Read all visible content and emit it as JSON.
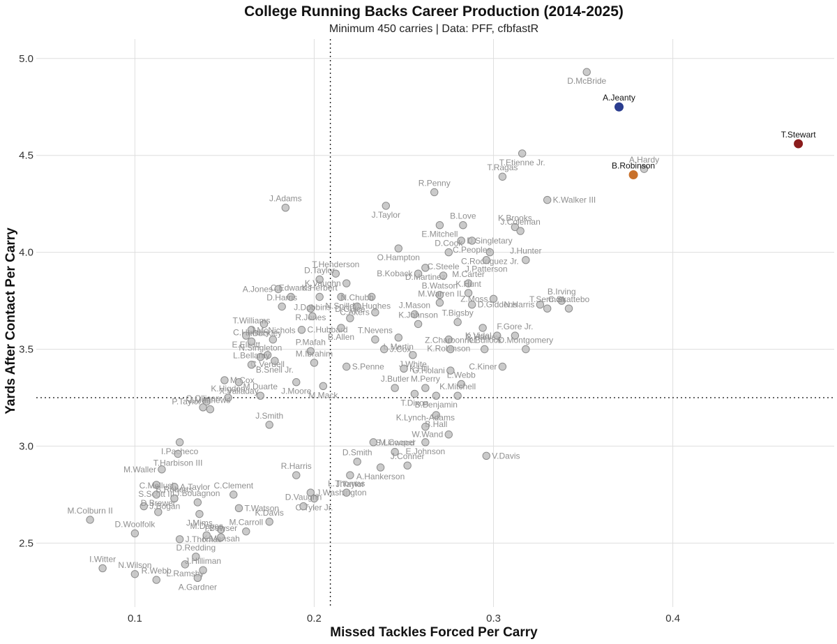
{
  "chart_data": {
    "type": "scatter",
    "title": "College Running Backs Career Production (2014-2025)",
    "subtitle": "Minimum 450 carries | Data: PFF, cfbfastR",
    "xlabel": "Missed Tackles Forced Per Carry",
    "ylabel": "Yards After Contact Per Carry",
    "xlim": [
      0.045,
      0.49
    ],
    "ylim": [
      2.17,
      5.1
    ],
    "x_ticks": [
      "0.1",
      "0.2",
      "0.3",
      "0.4"
    ],
    "x_tick_values": [
      0.1,
      0.2,
      0.3,
      0.4
    ],
    "y_ticks": [
      "2.5",
      "3.0",
      "3.5",
      "4.0",
      "4.5",
      "5.0"
    ],
    "y_tick_values": [
      2.5,
      3.0,
      3.5,
      4.0,
      4.5,
      5.0
    ],
    "grid": true,
    "reference_lines": {
      "x": 0.209,
      "y": 3.25
    },
    "highlight_colors": {
      "A.Jeanty": "#2b3d8f",
      "T.Stewart": "#8b1c1c",
      "B.Robinson": "#c8702a"
    },
    "points": [
      {
        "name": "D.McBride",
        "x": 0.352,
        "y": 4.93
      },
      {
        "name": "A.Jeanty",
        "x": 0.37,
        "y": 4.75,
        "highlight": true
      },
      {
        "name": "T.Stewart",
        "x": 0.47,
        "y": 4.56,
        "highlight": true
      },
      {
        "name": "T.Etienne Jr.",
        "x": 0.316,
        "y": 4.51
      },
      {
        "name": "A.Hardy",
        "x": 0.384,
        "y": 4.43
      },
      {
        "name": "T.Ragas",
        "x": 0.305,
        "y": 4.39
      },
      {
        "name": "B.Robinson",
        "x": 0.378,
        "y": 4.4,
        "highlight": true
      },
      {
        "name": "J.Adams",
        "x": 0.184,
        "y": 4.23
      },
      {
        "name": "J.Taylor",
        "x": 0.24,
        "y": 4.24
      },
      {
        "name": "R.Penny",
        "x": 0.267,
        "y": 4.31
      },
      {
        "name": "K.Walker III",
        "x": 0.33,
        "y": 4.27
      },
      {
        "name": "E.Mitchell",
        "x": 0.27,
        "y": 4.14
      },
      {
        "name": "B.Love",
        "x": 0.283,
        "y": 4.14
      },
      {
        "name": "K.Brooks",
        "x": 0.312,
        "y": 4.13
      },
      {
        "name": "D.Singletary",
        "x": 0.282,
        "y": 4.06
      },
      {
        "name": "C.Peoples",
        "x": 0.288,
        "y": 4.06
      },
      {
        "name": "J.Coleman",
        "x": 0.315,
        "y": 4.11
      },
      {
        "name": "O.Hampton",
        "x": 0.247,
        "y": 4.02
      },
      {
        "name": "D.Cook",
        "x": 0.275,
        "y": 4.0
      },
      {
        "name": "C.Rodriguez Jr.",
        "x": 0.298,
        "y": 4.0
      },
      {
        "name": "T.Henderson",
        "x": 0.212,
        "y": 3.89
      },
      {
        "name": "D.Martinez",
        "x": 0.262,
        "y": 3.92
      },
      {
        "name": "J.Patterson",
        "x": 0.296,
        "y": 3.96
      },
      {
        "name": "J.Hunter",
        "x": 0.318,
        "y": 3.96
      },
      {
        "name": "D.Taylor",
        "x": 0.203,
        "y": 3.86
      },
      {
        "name": "K.Vaughn",
        "x": 0.218,
        "y": 3.84
      },
      {
        "name": "B.Koback",
        "x": 0.258,
        "y": 3.89
      },
      {
        "name": "C.Steele",
        "x": 0.272,
        "y": 3.88
      },
      {
        "name": "M.Carter",
        "x": 0.286,
        "y": 3.84
      },
      {
        "name": "A.Jones",
        "x": 0.18,
        "y": 3.81
      },
      {
        "name": "C.Edwards",
        "x": 0.187,
        "y": 3.77
      },
      {
        "name": "K.Herbert",
        "x": 0.203,
        "y": 3.77
      },
      {
        "name": "N.Spiller",
        "x": 0.215,
        "y": 3.77
      },
      {
        "name": "M.Hughes",
        "x": 0.232,
        "y": 3.77
      },
      {
        "name": "B.Watson",
        "x": 0.27,
        "y": 3.78
      },
      {
        "name": "K.Hunt",
        "x": 0.286,
        "y": 3.79
      },
      {
        "name": "Z.Moss",
        "x": 0.3,
        "y": 3.76
      },
      {
        "name": "B.Irving",
        "x": 0.338,
        "y": 3.75
      },
      {
        "name": "D.Harris",
        "x": 0.182,
        "y": 3.72
      },
      {
        "name": "R.Jones",
        "x": 0.198,
        "y": 3.71
      },
      {
        "name": "N.Chubb",
        "x": 0.224,
        "y": 3.72
      },
      {
        "name": "M.Warren II",
        "x": 0.27,
        "y": 3.74
      },
      {
        "name": "D.Giddens",
        "x": 0.288,
        "y": 3.73
      },
      {
        "name": "C.Skattebo",
        "x": 0.342,
        "y": 3.71
      },
      {
        "name": "J.Dobbins",
        "x": 0.199,
        "y": 3.67
      },
      {
        "name": "D.Guice",
        "x": 0.22,
        "y": 3.66
      },
      {
        "name": "C.Akers",
        "x": 0.234,
        "y": 3.69
      },
      {
        "name": "J.Mason",
        "x": 0.256,
        "y": 3.68
      },
      {
        "name": "N.Harris",
        "x": 0.326,
        "y": 3.73
      },
      {
        "name": "J.Buckley",
        "x": 0.172,
        "y": 3.63
      },
      {
        "name": "T.Sermon",
        "x": 0.33,
        "y": 3.71
      },
      {
        "name": "E.Elliott",
        "x": 0.162,
        "y": 3.57
      },
      {
        "name": "T.Williams",
        "x": 0.165,
        "y": 3.6
      },
      {
        "name": "C.Hubbard",
        "x": 0.193,
        "y": 3.6
      },
      {
        "name": "B.Allen",
        "x": 0.215,
        "y": 3.61
      },
      {
        "name": "K.Johnson",
        "x": 0.258,
        "y": 3.63
      },
      {
        "name": "T.Bigsby",
        "x": 0.28,
        "y": 3.64
      },
      {
        "name": "R.Harvey",
        "x": 0.294,
        "y": 3.61
      },
      {
        "name": "C.Huntley",
        "x": 0.165,
        "y": 3.54
      },
      {
        "name": "J.McNichols",
        "x": 0.177,
        "y": 3.55
      },
      {
        "name": "T.Nevens",
        "x": 0.234,
        "y": 3.55
      },
      {
        "name": "L.Martin",
        "x": 0.247,
        "y": 3.56
      },
      {
        "name": "K.Robinson",
        "x": 0.275,
        "y": 3.55
      },
      {
        "name": "K.Vidal",
        "x": 0.302,
        "y": 3.57
      },
      {
        "name": "F.Gore Jr.",
        "x": 0.312,
        "y": 3.57
      },
      {
        "name": "N.Singleton",
        "x": 0.17,
        "y": 3.46
      },
      {
        "name": "C.Verdell",
        "x": 0.174,
        "y": 3.47
      },
      {
        "name": "P.Mafah",
        "x": 0.198,
        "y": 3.49
      },
      {
        "name": "J.Cox",
        "x": 0.239,
        "y": 3.5
      },
      {
        "name": "J.White",
        "x": 0.255,
        "y": 3.47
      },
      {
        "name": "Z.Charbonnet",
        "x": 0.276,
        "y": 3.5
      },
      {
        "name": "K.Bullock",
        "x": 0.295,
        "y": 3.5
      },
      {
        "name": "D.Montgomery",
        "x": 0.318,
        "y": 3.5
      },
      {
        "name": "B.Snell Jr.",
        "x": 0.178,
        "y": 3.44
      },
      {
        "name": "M.Ibrahim",
        "x": 0.2,
        "y": 3.43
      },
      {
        "name": "L.Bellamy",
        "x": 0.165,
        "y": 3.42
      },
      {
        "name": "S.Penne",
        "x": 0.218,
        "y": 3.41
      },
      {
        "name": "K.Hill",
        "x": 0.25,
        "y": 3.4
      },
      {
        "name": "G.Holani",
        "x": 0.276,
        "y": 3.39
      },
      {
        "name": "C.Kiner",
        "x": 0.305,
        "y": 3.41
      },
      {
        "name": "M.Cox",
        "x": 0.15,
        "y": 3.34
      },
      {
        "name": "X.Valladay",
        "x": 0.158,
        "y": 3.33
      },
      {
        "name": "J.Moore",
        "x": 0.19,
        "y": 3.33
      },
      {
        "name": "M.Mack",
        "x": 0.205,
        "y": 3.31
      },
      {
        "name": "J.Butler",
        "x": 0.245,
        "y": 3.3
      },
      {
        "name": "M.Perry",
        "x": 0.262,
        "y": 3.3
      },
      {
        "name": "L.Webb",
        "x": 0.282,
        "y": 3.32
      },
      {
        "name": "K.Higdon",
        "x": 0.152,
        "y": 3.25
      },
      {
        "name": "M.Duarte",
        "x": 0.17,
        "y": 3.26
      },
      {
        "name": "T.Dixon",
        "x": 0.256,
        "y": 3.27
      },
      {
        "name": "B.Benjamin",
        "x": 0.268,
        "y": 3.26
      },
      {
        "name": "K.Mitchell",
        "x": 0.28,
        "y": 3.26
      },
      {
        "name": "P.Taylor",
        "x": 0.14,
        "y": 3.23
      },
      {
        "name": "I.Matthews",
        "x": 0.142,
        "y": 3.19
      },
      {
        "name": "Q.Ollison",
        "x": 0.138,
        "y": 3.2
      },
      {
        "name": "B.Hall",
        "x": 0.268,
        "y": 3.16
      },
      {
        "name": "J.Smith",
        "x": 0.175,
        "y": 3.11
      },
      {
        "name": "K.Lynch-Adams",
        "x": 0.262,
        "y": 3.1
      },
      {
        "name": "W.Wand",
        "x": 0.275,
        "y": 3.06
      },
      {
        "name": "I.Pacheco",
        "x": 0.125,
        "y": 3.02
      },
      {
        "name": "M.Cooper",
        "x": 0.233,
        "y": 3.02
      },
      {
        "name": "E.Johnson",
        "x": 0.262,
        "y": 3.02
      },
      {
        "name": "T.Harbison III",
        "x": 0.124,
        "y": 2.96
      },
      {
        "name": "S.Linwood",
        "x": 0.245,
        "y": 2.97
      },
      {
        "name": "V.Davis",
        "x": 0.296,
        "y": 2.95
      },
      {
        "name": "M.Waller",
        "x": 0.115,
        "y": 2.88
      },
      {
        "name": "D.Smith",
        "x": 0.224,
        "y": 2.92
      },
      {
        "name": "R.Harris",
        "x": 0.19,
        "y": 2.85
      },
      {
        "name": "J.Conner",
        "x": 0.252,
        "y": 2.9
      },
      {
        "name": "S.Scott III",
        "x": 0.112,
        "y": 2.8
      },
      {
        "name": "J.Taylor",
        "x": 0.22,
        "y": 2.85
      },
      {
        "name": "A.Hankerson",
        "x": 0.237,
        "y": 2.89
      },
      {
        "name": "A.Taylor",
        "x": 0.122,
        "y": 2.79
      },
      {
        "name": "C.Mellusi",
        "x": 0.112,
        "y": 2.75
      },
      {
        "name": "J.Washington",
        "x": 0.198,
        "y": 2.76
      },
      {
        "name": "L.Thomas",
        "x": 0.218,
        "y": 2.76
      },
      {
        "name": "B.Roberts",
        "x": 0.122,
        "y": 2.73
      },
      {
        "name": "C.Clement",
        "x": 0.155,
        "y": 2.75
      },
      {
        "name": "J.Bouagnon",
        "x": 0.135,
        "y": 2.71
      },
      {
        "name": "C.Tyler Jr.",
        "x": 0.2,
        "y": 2.73
      },
      {
        "name": "J.Bogan",
        "x": 0.105,
        "y": 2.69
      },
      {
        "name": "T.Watson",
        "x": 0.158,
        "y": 2.68
      },
      {
        "name": "D.Brewer",
        "x": 0.113,
        "y": 2.66
      },
      {
        "name": "J.Mims",
        "x": 0.136,
        "y": 2.65
      },
      {
        "name": "D.Vaughn",
        "x": 0.194,
        "y": 2.69
      },
      {
        "name": "M.Colburn II",
        "x": 0.075,
        "y": 2.62
      },
      {
        "name": "K.Mensah",
        "x": 0.148,
        "y": 2.57
      },
      {
        "name": "K.Davis",
        "x": 0.175,
        "y": 2.61
      },
      {
        "name": "D.Woolfolk",
        "x": 0.1,
        "y": 2.55
      },
      {
        "name": "M.Dayes",
        "x": 0.14,
        "y": 2.54
      },
      {
        "name": "M.Carroll",
        "x": 0.162,
        "y": 2.56
      },
      {
        "name": "J.Thomas",
        "x": 0.125,
        "y": 2.52
      },
      {
        "name": "I.Bowser",
        "x": 0.148,
        "y": 2.53
      },
      {
        "name": "D.Redding",
        "x": 0.134,
        "y": 2.43
      },
      {
        "name": "I.Witter",
        "x": 0.082,
        "y": 2.37
      },
      {
        "name": "L.Ramsby",
        "x": 0.128,
        "y": 2.39
      },
      {
        "name": "N.Wilson",
        "x": 0.1,
        "y": 2.34
      },
      {
        "name": "J.Hilliman",
        "x": 0.138,
        "y": 2.36
      },
      {
        "name": "R.Webb",
        "x": 0.112,
        "y": 2.31
      },
      {
        "name": "A.Gardner",
        "x": 0.135,
        "y": 2.32
      }
    ]
  }
}
